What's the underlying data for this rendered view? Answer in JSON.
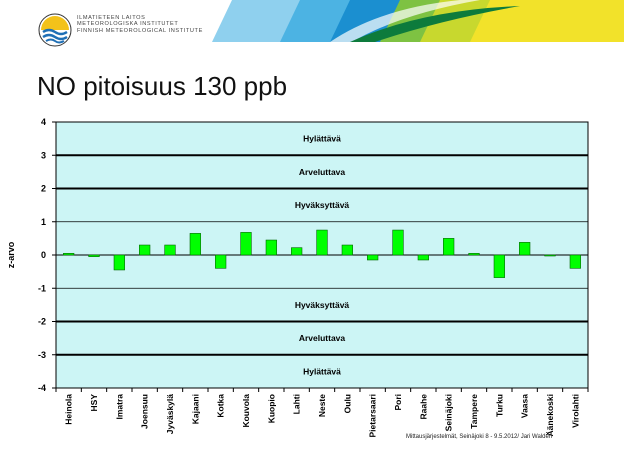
{
  "header": {
    "org_lines": [
      "ILMATIETEEN LAITOS",
      "METEOROLOGISKA INSTITUTET",
      "FINNISH METEOROLOGICAL INSTITUTE"
    ]
  },
  "page_title": "NO pitoisuus 130 ppb",
  "footer": "Mittausjärjestelmät, Seinäjoki 8 - 9.5.2012/ Jari Waldén",
  "colors": {
    "plot_bg": "#ccf5f5",
    "bar": "#00ff00",
    "bar_stroke": "#006600",
    "zone_line": "#000000"
  },
  "chart_data": {
    "type": "bar",
    "title": "",
    "xlabel": "",
    "ylabel": "z-arvo",
    "ylim": [
      -4,
      4
    ],
    "yticks": [
      4,
      3,
      2,
      1,
      0,
      -1,
      -2,
      -3,
      -4
    ],
    "grid": true,
    "categories": [
      "Heinola",
      "HSY",
      "Imatra",
      "Joensuu",
      "Jyväskylä",
      "Kajaani",
      "Kotka",
      "Kouvola",
      "Kuopio",
      "Lahti",
      "Neste",
      "Oulu",
      "Pietarsaari",
      "Pori",
      "Raahe",
      "Seinäjoki",
      "Tampere",
      "Turku",
      "Vaasa",
      "Äänekoski",
      "Virolahti"
    ],
    "values": [
      0.05,
      -0.05,
      -0.45,
      0.3,
      0.3,
      0.65,
      -0.4,
      0.68,
      0.45,
      0.22,
      0.75,
      0.3,
      -0.15,
      0.75,
      -0.15,
      0.5,
      0.05,
      -0.68,
      0.38,
      -0.02,
      -0.4
    ],
    "zones": [
      {
        "label": "Hylättävä",
        "y": 3.5
      },
      {
        "label": "Arveluttava",
        "y": 2.5
      },
      {
        "label": "Hyväksyttävä",
        "y": 1.5
      },
      {
        "label": "Hyväksyttävä",
        "y": -1.5
      },
      {
        "label": "Arveluttava",
        "y": -2.5
      },
      {
        "label": "Hylättävä",
        "y": -3.5
      }
    ],
    "zone_lines": [
      3,
      2,
      -2,
      -3
    ],
    "grid_lines": [
      1,
      -1
    ]
  }
}
